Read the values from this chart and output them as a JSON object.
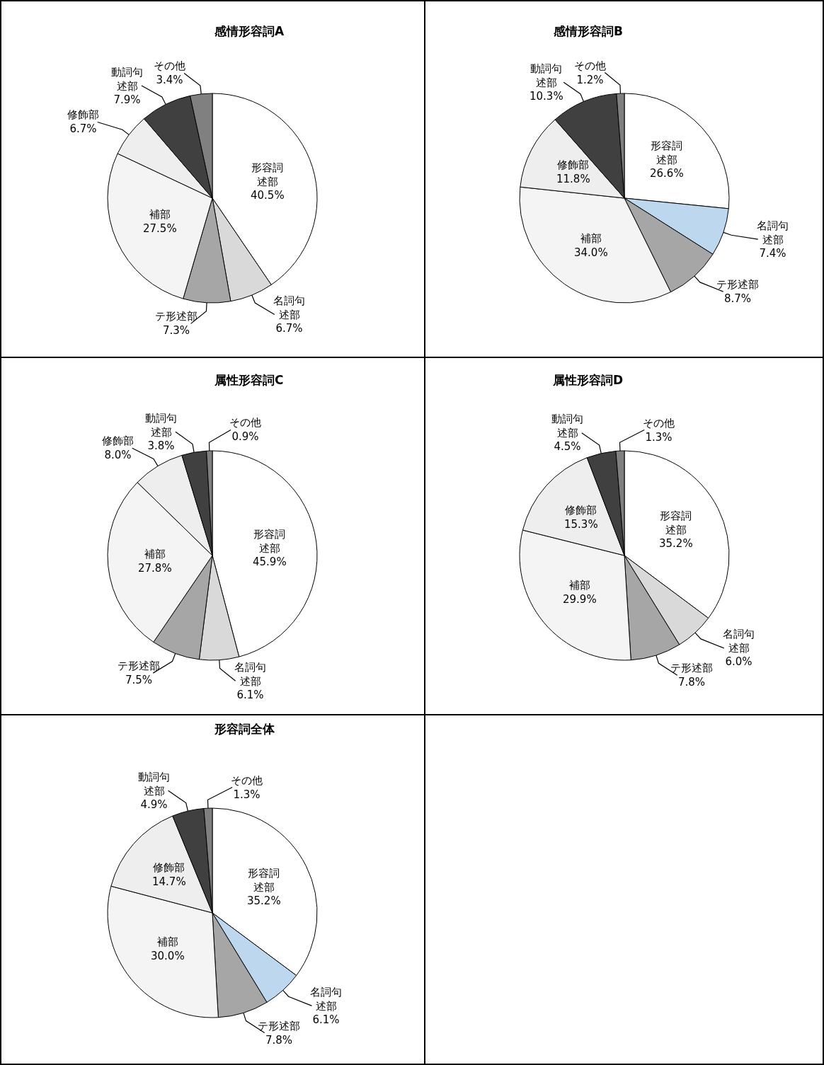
{
  "chart_data": [
    {
      "type": "pie",
      "title": "感情形容詞A",
      "categories": [
        "形容詞述部",
        "名詞句述部",
        "テ形述部",
        "補部",
        "修飾部",
        "動詞句述部",
        "その他"
      ],
      "values": [
        40.5,
        6.7,
        7.3,
        27.5,
        6.7,
        7.9,
        3.4
      ],
      "value_labels": [
        "40.5%",
        "6.7%",
        "7.3%",
        "27.5%",
        "6.7%",
        "7.9%",
        "3.4%"
      ],
      "colors": [
        "#ffffff",
        "#d9d9d9",
        "#a6a6a6",
        "#f4f4f4",
        "#eeeeee",
        "#404040",
        "#808080"
      ]
    },
    {
      "type": "pie",
      "title": "感情形容詞B",
      "categories": [
        "形容詞述部",
        "名詞句述部",
        "テ形述部",
        "補部",
        "修飾部",
        "動詞句述部",
        "その他"
      ],
      "values": [
        26.6,
        7.4,
        8.7,
        34.0,
        11.8,
        10.3,
        1.2
      ],
      "value_labels": [
        "26.6%",
        "7.4%",
        "8.7%",
        "34.0%",
        "11.8%",
        "10.3%",
        "1.2%"
      ],
      "colors": [
        "#ffffff",
        "#bdd7ee",
        "#a6a6a6",
        "#f4f4f4",
        "#eeeeee",
        "#404040",
        "#808080"
      ]
    },
    {
      "type": "pie",
      "title": "属性形容詞C",
      "categories": [
        "形容詞述部",
        "名詞句述部",
        "テ形述部",
        "補部",
        "修飾部",
        "動詞句述部",
        "その他"
      ],
      "values": [
        45.9,
        6.1,
        7.5,
        27.8,
        8.0,
        3.8,
        0.9
      ],
      "value_labels": [
        "45.9%",
        "6.1%",
        "7.5%",
        "27.8%",
        "8.0%",
        "3.8%",
        "0.9%"
      ],
      "colors": [
        "#ffffff",
        "#d9d9d9",
        "#a6a6a6",
        "#f4f4f4",
        "#eeeeee",
        "#404040",
        "#808080"
      ]
    },
    {
      "type": "pie",
      "title": "属性形容詞D",
      "categories": [
        "形容詞述部",
        "名詞句述部",
        "テ形述部",
        "補部",
        "修飾部",
        "動詞句述部",
        "その他"
      ],
      "values": [
        35.2,
        6.0,
        7.8,
        29.9,
        15.3,
        4.5,
        1.3
      ],
      "value_labels": [
        "35.2%",
        "6.0%",
        "7.8%",
        "29.9%",
        "15.3%",
        "4.5%",
        "1.3%"
      ],
      "colors": [
        "#ffffff",
        "#d9d9d9",
        "#a6a6a6",
        "#f4f4f4",
        "#eeeeee",
        "#404040",
        "#808080"
      ]
    },
    {
      "type": "pie",
      "title": "形容詞全体",
      "categories": [
        "形容詞述部",
        "名詞句述部",
        "テ形述部",
        "補部",
        "修飾部",
        "動詞句述部",
        "その他"
      ],
      "values": [
        35.2,
        6.1,
        7.8,
        30.0,
        14.7,
        4.9,
        1.3
      ],
      "value_labels": [
        "35.2%",
        "6.1%",
        "7.8%",
        "30.0%",
        "14.7%",
        "4.9%",
        "1.3%"
      ],
      "colors": [
        "#ffffff",
        "#bdd7ee",
        "#a6a6a6",
        "#f4f4f4",
        "#eeeeee",
        "#404040",
        "#808080"
      ]
    }
  ]
}
